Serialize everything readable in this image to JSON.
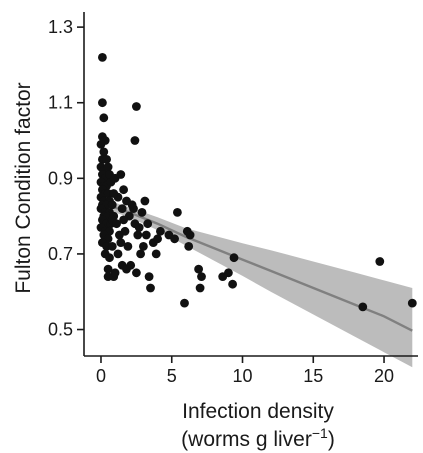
{
  "chart_data": {
    "type": "scatter",
    "title": "",
    "xlabel": "Infection density",
    "xlabel_line2_prefix": "(worms g liver",
    "xlabel_line2_sup": "−1",
    "xlabel_line2_suffix": ")",
    "ylabel": "Fulton Condition factor",
    "xlim": [
      -1.2,
      22.4
    ],
    "ylim": [
      0.43,
      1.34
    ],
    "xticks": [
      0,
      5,
      10,
      15,
      20
    ],
    "xtick_labels": [
      "0",
      "5",
      "10",
      "15",
      "20"
    ],
    "yticks": [
      0.5,
      0.7,
      0.9,
      1.1,
      1.3
    ],
    "ytick_labels": [
      "0.5",
      "0.7",
      "0.9",
      "1.1",
      "1.3"
    ],
    "grid": false,
    "legend": "none",
    "colors": {
      "points": "#111111",
      "fit_line": "#808080",
      "confidence_band": "#b8b8b8"
    },
    "fit": {
      "x": [
        0,
        2,
        4,
        6,
        8,
        10,
        12,
        14,
        16,
        18,
        20,
        22
      ],
      "y": [
        0.835,
        0.81,
        0.78,
        0.745,
        0.715,
        0.685,
        0.655,
        0.625,
        0.595,
        0.565,
        0.535,
        0.497
      ],
      "lower": [
        0.822,
        0.797,
        0.763,
        0.722,
        0.682,
        0.642,
        0.6,
        0.56,
        0.52,
        0.48,
        0.44,
        0.4
      ],
      "upper": [
        0.848,
        0.823,
        0.797,
        0.768,
        0.748,
        0.728,
        0.71,
        0.69,
        0.67,
        0.65,
        0.63,
        0.61
      ]
    },
    "points": [
      {
        "x": 0.1,
        "y": 1.22
      },
      {
        "x": 0.1,
        "y": 1.1
      },
      {
        "x": 0.2,
        "y": 1.06
      },
      {
        "x": 0.1,
        "y": 1.01
      },
      {
        "x": 0.3,
        "y": 1.0
      },
      {
        "x": 0.0,
        "y": 0.99
      },
      {
        "x": 0.2,
        "y": 0.97
      },
      {
        "x": 0.1,
        "y": 0.95
      },
      {
        "x": 0.4,
        "y": 0.95
      },
      {
        "x": 0.0,
        "y": 0.93
      },
      {
        "x": 0.2,
        "y": 0.92
      },
      {
        "x": 0.5,
        "y": 0.93
      },
      {
        "x": 0.1,
        "y": 0.91
      },
      {
        "x": 0.3,
        "y": 0.9
      },
      {
        "x": 0.6,
        "y": 0.91
      },
      {
        "x": 0.0,
        "y": 0.89
      },
      {
        "x": 0.2,
        "y": 0.88
      },
      {
        "x": 0.4,
        "y": 0.88
      },
      {
        "x": 0.7,
        "y": 0.89
      },
      {
        "x": 0.1,
        "y": 0.87
      },
      {
        "x": 0.3,
        "y": 0.86
      },
      {
        "x": 0.5,
        "y": 0.86
      },
      {
        "x": 0.0,
        "y": 0.85
      },
      {
        "x": 0.2,
        "y": 0.84
      },
      {
        "x": 0.6,
        "y": 0.84
      },
      {
        "x": 0.1,
        "y": 0.83
      },
      {
        "x": 0.4,
        "y": 0.83
      },
      {
        "x": 0.8,
        "y": 0.83
      },
      {
        "x": 0.0,
        "y": 0.82
      },
      {
        "x": 0.3,
        "y": 0.81
      },
      {
        "x": 0.6,
        "y": 0.81
      },
      {
        "x": 0.2,
        "y": 0.8
      },
      {
        "x": 0.5,
        "y": 0.8
      },
      {
        "x": 0.9,
        "y": 0.8
      },
      {
        "x": 0.1,
        "y": 0.79
      },
      {
        "x": 0.4,
        "y": 0.78
      },
      {
        "x": 0.7,
        "y": 0.78
      },
      {
        "x": 0.0,
        "y": 0.77
      },
      {
        "x": 0.3,
        "y": 0.76
      },
      {
        "x": 0.6,
        "y": 0.76
      },
      {
        "x": 0.2,
        "y": 0.75
      },
      {
        "x": 0.5,
        "y": 0.74
      },
      {
        "x": 0.1,
        "y": 0.73
      },
      {
        "x": 0.4,
        "y": 0.72
      },
      {
        "x": 0.8,
        "y": 0.72
      },
      {
        "x": 0.3,
        "y": 0.7
      },
      {
        "x": 0.6,
        "y": 0.69
      },
      {
        "x": 0.5,
        "y": 0.66
      },
      {
        "x": 0.5,
        "y": 0.64
      },
      {
        "x": 0.9,
        "y": 0.64
      },
      {
        "x": 0.8,
        "y": 0.79
      },
      {
        "x": 1.0,
        "y": 0.9
      },
      {
        "x": 1.2,
        "y": 0.85
      },
      {
        "x": 1.4,
        "y": 0.91
      },
      {
        "x": 1.5,
        "y": 0.82
      },
      {
        "x": 1.1,
        "y": 0.78
      },
      {
        "x": 1.6,
        "y": 0.87
      },
      {
        "x": 1.8,
        "y": 0.84
      },
      {
        "x": 1.3,
        "y": 0.75
      },
      {
        "x": 2.0,
        "y": 0.8
      },
      {
        "x": 1.7,
        "y": 0.76
      },
      {
        "x": 2.2,
        "y": 0.83
      },
      {
        "x": 1.9,
        "y": 0.72
      },
      {
        "x": 2.4,
        "y": 0.78
      },
      {
        "x": 1.2,
        "y": 0.7
      },
      {
        "x": 2.6,
        "y": 0.75
      },
      {
        "x": 2.3,
        "y": 0.82
      },
      {
        "x": 1.5,
        "y": 0.67
      },
      {
        "x": 1.8,
        "y": 0.66
      },
      {
        "x": 2.1,
        "y": 0.67
      },
      {
        "x": 2.8,
        "y": 0.7
      },
      {
        "x": 1.4,
        "y": 0.73
      },
      {
        "x": 2.5,
        "y": 0.65
      },
      {
        "x": 1.0,
        "y": 0.65
      },
      {
        "x": 1.6,
        "y": 0.79
      },
      {
        "x": 2.7,
        "y": 0.77
      },
      {
        "x": 3.0,
        "y": 0.72
      },
      {
        "x": 3.2,
        "y": 0.75
      },
      {
        "x": 3.4,
        "y": 0.64
      },
      {
        "x": 3.5,
        "y": 0.61
      },
      {
        "x": 3.7,
        "y": 0.73
      },
      {
        "x": 4.0,
        "y": 0.74
      },
      {
        "x": 4.2,
        "y": 0.76
      },
      {
        "x": 3.9,
        "y": 0.7
      },
      {
        "x": 3.3,
        "y": 0.78
      },
      {
        "x": 2.9,
        "y": 0.81
      },
      {
        "x": 3.1,
        "y": 0.84
      },
      {
        "x": 2.5,
        "y": 1.09
      },
      {
        "x": 2.4,
        "y": 1.0
      },
      {
        "x": 0.9,
        "y": 0.86
      },
      {
        "x": 4.8,
        "y": 0.75
      },
      {
        "x": 5.2,
        "y": 0.74
      },
      {
        "x": 5.4,
        "y": 0.81
      },
      {
        "x": 5.9,
        "y": 0.57
      },
      {
        "x": 6.1,
        "y": 0.76
      },
      {
        "x": 6.3,
        "y": 0.75
      },
      {
        "x": 6.2,
        "y": 0.72
      },
      {
        "x": 6.9,
        "y": 0.66
      },
      {
        "x": 7.0,
        "y": 0.61
      },
      {
        "x": 7.1,
        "y": 0.64
      },
      {
        "x": 8.6,
        "y": 0.64
      },
      {
        "x": 9.0,
        "y": 0.65
      },
      {
        "x": 9.4,
        "y": 0.69
      },
      {
        "x": 9.3,
        "y": 0.62
      },
      {
        "x": 18.5,
        "y": 0.56
      },
      {
        "x": 19.7,
        "y": 0.68
      },
      {
        "x": 22.0,
        "y": 0.57
      }
    ]
  }
}
